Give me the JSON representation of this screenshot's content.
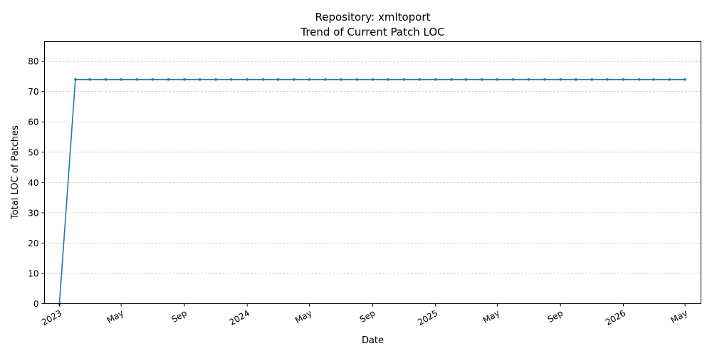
{
  "chart_data": {
    "type": "line",
    "title": "Repository: xmltoport",
    "subtitle": "Trend of Current Patch LOC",
    "xlabel": "Date",
    "ylabel": "Total LOC of Patches",
    "ylim": [
      0,
      86.5
    ],
    "xlim": [
      "2022-12-03",
      "2026-06-01"
    ],
    "yticks": [
      0,
      10,
      20,
      30,
      40,
      50,
      60,
      70,
      80
    ],
    "xticks": [
      {
        "date": "2023-01-01",
        "label": "2023"
      },
      {
        "date": "2023-05-01",
        "label": "May"
      },
      {
        "date": "2023-09-01",
        "label": "Sep"
      },
      {
        "date": "2024-01-01",
        "label": "2024"
      },
      {
        "date": "2024-05-01",
        "label": "May"
      },
      {
        "date": "2024-09-01",
        "label": "Sep"
      },
      {
        "date": "2025-01-01",
        "label": "2025"
      },
      {
        "date": "2025-05-01",
        "label": "May"
      },
      {
        "date": "2025-09-01",
        "label": "Sep"
      },
      {
        "date": "2026-01-01",
        "label": "2026"
      },
      {
        "date": "2026-05-01",
        "label": "May"
      }
    ],
    "grid": "y-dashed",
    "series": [
      {
        "color": "#1f77b4",
        "x": [
          "2023-01-01",
          "2023-02-01",
          "2023-03-01",
          "2023-04-01",
          "2023-05-01",
          "2023-06-01",
          "2023-07-01",
          "2023-08-01",
          "2023-09-01",
          "2023-10-01",
          "2023-11-01",
          "2023-12-01",
          "2024-01-01",
          "2024-02-01",
          "2024-03-01",
          "2024-04-01",
          "2024-05-01",
          "2024-06-01",
          "2024-07-01",
          "2024-08-01",
          "2024-09-01",
          "2024-10-01",
          "2024-11-01",
          "2024-12-01",
          "2025-01-01",
          "2025-02-01",
          "2025-03-01",
          "2025-04-01",
          "2025-05-01",
          "2025-06-01",
          "2025-07-01",
          "2025-08-01",
          "2025-09-01",
          "2025-10-01",
          "2025-11-01",
          "2025-12-01",
          "2026-01-01",
          "2026-02-01",
          "2026-03-01",
          "2026-04-01",
          "2026-05-01"
        ],
        "y": [
          0,
          74,
          74,
          74,
          74,
          74,
          74,
          74,
          74,
          74,
          74,
          74,
          74,
          74,
          74,
          74,
          74,
          74,
          74,
          74,
          74,
          74,
          74,
          74,
          74,
          74,
          74,
          74,
          74,
          74,
          74,
          74,
          74,
          74,
          74,
          74,
          74,
          74,
          74,
          74,
          74
        ]
      }
    ]
  }
}
